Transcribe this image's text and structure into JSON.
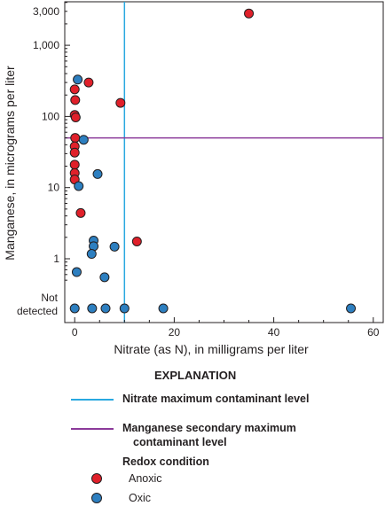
{
  "chart_data": {
    "type": "scatter",
    "xlabel": "Nitrate (as N), in milligrams per liter",
    "ylabel": "Manganese, in micrograms per liter",
    "x_ticks": [
      0,
      20,
      40,
      60
    ],
    "xlim": [
      -2,
      62
    ],
    "y_scale": "log",
    "y_ticks": [
      {
        "value": 1,
        "label": "1"
      },
      {
        "value": 10,
        "label": "10"
      },
      {
        "value": 100,
        "label": "100"
      },
      {
        "value": 1000,
        "label": "1,000"
      },
      {
        "value": 3000,
        "label": "3,000"
      }
    ],
    "not_detected_label": [
      "Not",
      "detected"
    ],
    "grid": false,
    "reference_lines": [
      {
        "orientation": "vertical",
        "value": 10,
        "color": "#29a8e0"
      },
      {
        "orientation": "horizontal",
        "value": 50,
        "color": "#8b3a9a"
      }
    ],
    "series": [
      {
        "name": "Anoxic",
        "color": "#e0202a",
        "points": [
          {
            "x": 35,
            "y": 2800
          },
          {
            "x": 0,
            "y": 240
          },
          {
            "x": 0.1,
            "y": 170
          },
          {
            "x": 0,
            "y": 105
          },
          {
            "x": 0.2,
            "y": 97
          },
          {
            "x": 0.1,
            "y": 50
          },
          {
            "x": 0,
            "y": 38
          },
          {
            "x": 0,
            "y": 31
          },
          {
            "x": 0,
            "y": 21
          },
          {
            "x": 0,
            "y": 16
          },
          {
            "x": 0,
            "y": 13
          },
          {
            "x": 1.2,
            "y": 4.4
          },
          {
            "x": 2.8,
            "y": 300
          },
          {
            "x": 9.2,
            "y": 155
          },
          {
            "x": 12.5,
            "y": 1.75
          }
        ]
      },
      {
        "name": "Oxic",
        "color": "#2d7fc0",
        "points": [
          {
            "x": 0.6,
            "y": 330
          },
          {
            "x": 1.8,
            "y": 47
          },
          {
            "x": 4.6,
            "y": 15.5
          },
          {
            "x": 0.8,
            "y": 10.5
          },
          {
            "x": 3.8,
            "y": 1.8
          },
          {
            "x": 3.8,
            "y": 1.5
          },
          {
            "x": 3.4,
            "y": 1.17
          },
          {
            "x": 8,
            "y": 1.48
          },
          {
            "x": 0.4,
            "y": 0.65
          },
          {
            "x": 6,
            "y": 0.55
          },
          {
            "x": 0,
            "y": "ND"
          },
          {
            "x": 3.5,
            "y": "ND"
          },
          {
            "x": 6.2,
            "y": "ND"
          },
          {
            "x": 10,
            "y": "ND"
          },
          {
            "x": 17.8,
            "y": "ND"
          },
          {
            "x": 55.5,
            "y": "ND"
          }
        ]
      }
    ]
  },
  "legend": {
    "title": "EXPLANATION",
    "nitrate_line_label": "Nitrate maximum contaminant level",
    "manganese_line_label_1": "Manganese secondary maximum",
    "manganese_line_label_2": "contaminant level",
    "redox_title": "Redox condition",
    "anoxic_label": "Anoxic",
    "oxic_label": "Oxic",
    "nitrate_color": "#29a8e0",
    "manganese_color": "#8b3a9a",
    "anoxic_color": "#e0202a",
    "oxic_color": "#2d7fc0"
  }
}
